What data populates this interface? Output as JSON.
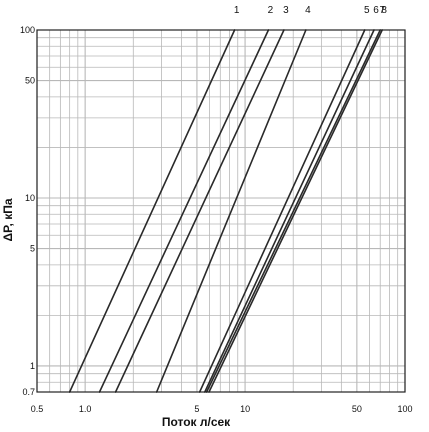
{
  "chart_data": {
    "type": "line",
    "title": "",
    "xlabel": "Поток л/сек",
    "ylabel": "ΔP, кПа",
    "x_scale": "log",
    "y_scale": "log",
    "xlim": [
      0.5,
      100
    ],
    "ylim": [
      0.7,
      100
    ],
    "grid": true,
    "x_tick_labels": [
      {
        "value": 0.5,
        "label": "0.5"
      },
      {
        "value": 1,
        "label": "1.0"
      },
      {
        "value": 5,
        "label": "5"
      },
      {
        "value": 10,
        "label": "10"
      },
      {
        "value": 50,
        "label": "50"
      },
      {
        "value": 100,
        "label": "100"
      }
    ],
    "y_tick_labels": [
      {
        "value": 0.7,
        "label": "0.7"
      },
      {
        "value": 1,
        "label": "1"
      },
      {
        "value": 5,
        "label": "5"
      },
      {
        "value": 10,
        "label": "10"
      },
      {
        "value": 50,
        "label": "50"
      },
      {
        "value": 100,
        "label": "100"
      }
    ],
    "series": [
      {
        "name": "1",
        "x": [
          0.8,
          8.6
        ],
        "y": [
          0.7,
          100
        ]
      },
      {
        "name": "2",
        "x": [
          1.23,
          14.0
        ],
        "y": [
          0.7,
          100
        ]
      },
      {
        "name": "3",
        "x": [
          1.55,
          17.5
        ],
        "y": [
          0.7,
          100
        ]
      },
      {
        "name": "4",
        "x": [
          2.8,
          24.0
        ],
        "y": [
          0.7,
          100
        ]
      },
      {
        "name": "5",
        "x": [
          5.2,
          56.0
        ],
        "y": [
          0.7,
          100
        ]
      },
      {
        "name": "6",
        "x": [
          5.6,
          64.0
        ],
        "y": [
          0.7,
          100
        ]
      },
      {
        "name": "7",
        "x": [
          5.75,
          70.0
        ],
        "y": [
          0.7,
          100
        ]
      },
      {
        "name": "8",
        "x": [
          5.95,
          72.0
        ],
        "y": [
          0.7,
          100
        ]
      }
    ],
    "colors": {
      "line": "#2a2a2a",
      "grid": "#b8b8b8",
      "axis": "#222222"
    }
  }
}
